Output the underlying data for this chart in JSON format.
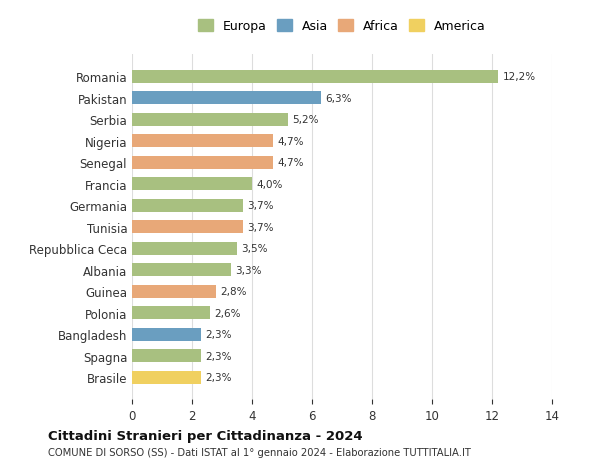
{
  "countries": [
    "Brasile",
    "Spagna",
    "Bangladesh",
    "Polonia",
    "Guinea",
    "Albania",
    "Repubblica Ceca",
    "Tunisia",
    "Germania",
    "Francia",
    "Senegal",
    "Nigeria",
    "Serbia",
    "Pakistan",
    "Romania"
  ],
  "values": [
    2.3,
    2.3,
    2.3,
    2.6,
    2.8,
    3.3,
    3.5,
    3.7,
    3.7,
    4.0,
    4.7,
    4.7,
    5.2,
    6.3,
    12.2
  ],
  "labels": [
    "2,3%",
    "2,3%",
    "2,3%",
    "2,6%",
    "2,8%",
    "3,3%",
    "3,5%",
    "3,7%",
    "3,7%",
    "4,0%",
    "4,7%",
    "4,7%",
    "5,2%",
    "6,3%",
    "12,2%"
  ],
  "continents": [
    "America",
    "Europa",
    "Asia",
    "Europa",
    "Africa",
    "Europa",
    "Europa",
    "Africa",
    "Europa",
    "Europa",
    "Africa",
    "Africa",
    "Europa",
    "Asia",
    "Europa"
  ],
  "colors": {
    "Europa": "#a8c080",
    "Asia": "#6a9ec0",
    "Africa": "#e8a878",
    "America": "#f0d060"
  },
  "legend_order": [
    "Europa",
    "Asia",
    "Africa",
    "America"
  ],
  "title": "Cittadini Stranieri per Cittadinanza - 2024",
  "subtitle": "COMUNE DI SORSO (SS) - Dati ISTAT al 1° gennaio 2024 - Elaborazione TUTTITALIA.IT",
  "xlim": [
    0,
    14
  ],
  "xticks": [
    0,
    2,
    4,
    6,
    8,
    10,
    12,
    14
  ],
  "background_color": "#ffffff",
  "grid_color": "#dddddd",
  "bar_height": 0.6
}
